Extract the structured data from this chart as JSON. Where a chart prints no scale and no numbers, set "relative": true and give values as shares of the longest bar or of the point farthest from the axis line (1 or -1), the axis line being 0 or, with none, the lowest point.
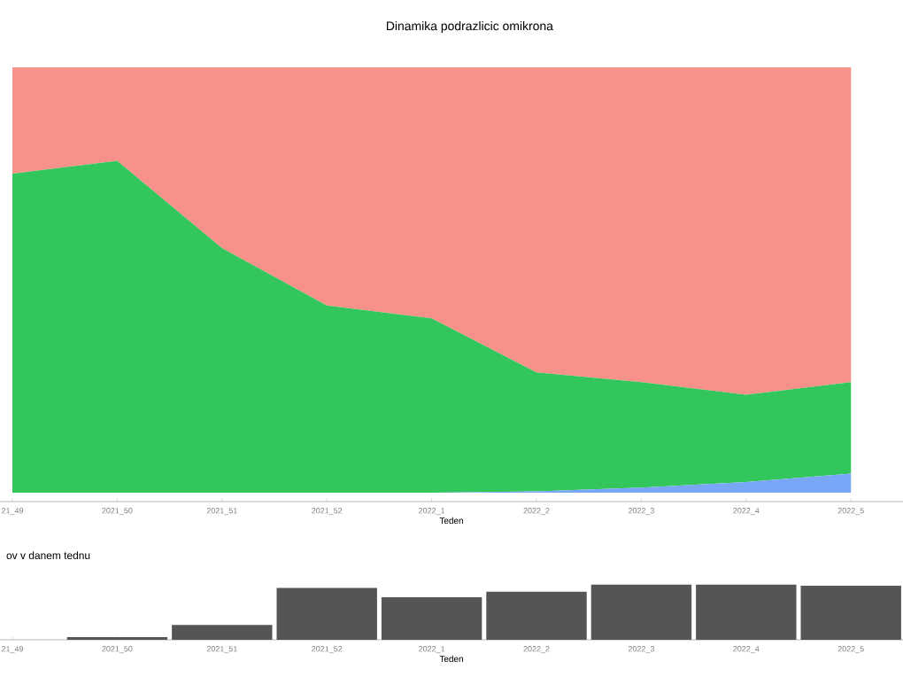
{
  "chart_data": [
    {
      "type": "area",
      "title": "Dinamika podrazlicic omikrona",
      "xlabel": "Teden",
      "stacked": true,
      "relative": true,
      "categories": [
        "21_49",
        "2021_50",
        "2021_51",
        "2021_52",
        "2022_1",
        "2022_2",
        "2022_3",
        "2022_4",
        "2022_5"
      ],
      "series": [
        {
          "color": "#7aa6f8",
          "values": [
            0,
            0,
            0,
            0,
            0,
            0.003,
            0.012,
            0.025,
            0.045
          ]
        },
        {
          "color": "#33c65c",
          "values": [
            0.75,
            0.78,
            0.575,
            0.44,
            0.41,
            0.28,
            0.248,
            0.205,
            0.215
          ]
        },
        {
          "color": "#f8918a",
          "values": [
            0.25,
            0.22,
            0.425,
            0.56,
            0.59,
            0.717,
            0.74,
            0.77,
            0.74
          ]
        }
      ]
    },
    {
      "type": "bar",
      "title": "ov v danem tednu",
      "xlabel": "Teden",
      "relative": true,
      "color": "#555555",
      "categories": [
        "21_49",
        "2021_50",
        "2021_51",
        "2021_52",
        "2022_1",
        "2022_2",
        "2022_3",
        "2022_4",
        "2022_5"
      ],
      "values": [
        0,
        0.05,
        0.27,
        0.94,
        0.77,
        0.87,
        1.0,
        1.0,
        0.98
      ]
    }
  ]
}
